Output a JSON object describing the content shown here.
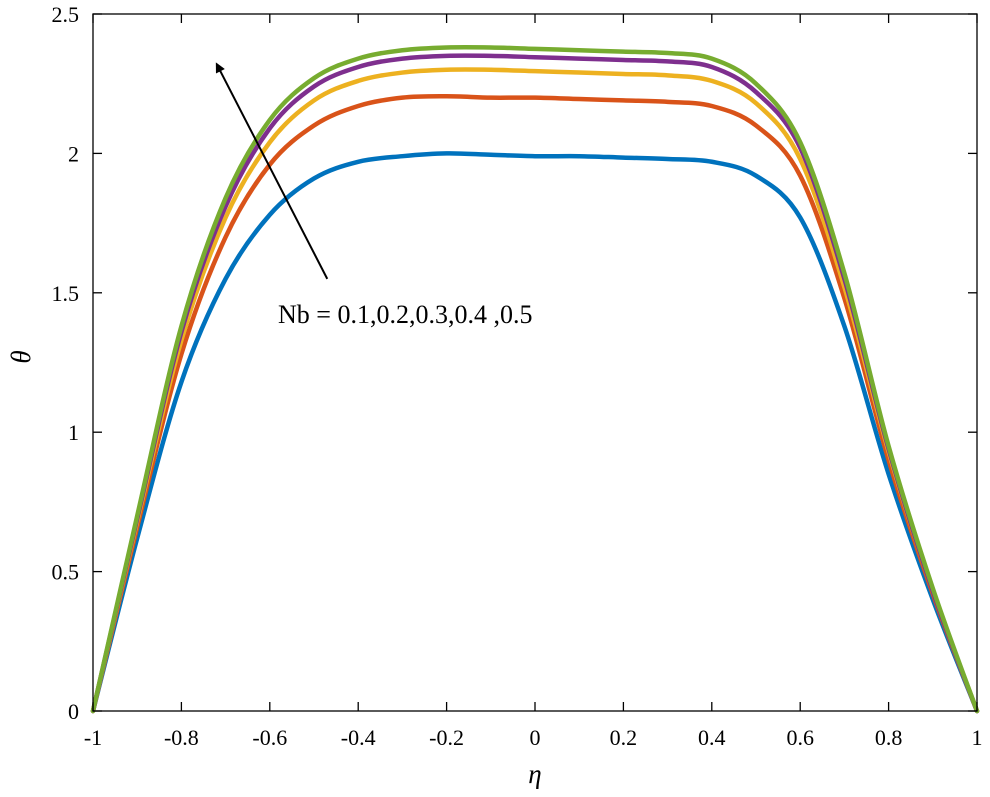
{
  "chart_data": {
    "type": "line",
    "title": "",
    "xlabel": "η",
    "ylabel": "θ",
    "xlim": [
      -1,
      1
    ],
    "ylim": [
      0,
      2.5
    ],
    "xticks": [
      -1,
      -0.8,
      -0.6,
      -0.4,
      -0.2,
      0,
      0.2,
      0.4,
      0.6,
      0.8,
      1
    ],
    "xtick_labels": [
      "-1",
      "-0.8",
      "-0.6",
      "-0.4",
      "-0.2",
      "0",
      "0.2",
      "0.4",
      "0.6",
      "0.8",
      "1"
    ],
    "yticks": [
      0,
      0.5,
      1,
      1.5,
      2,
      2.5
    ],
    "ytick_labels": [
      "0",
      "0.5",
      "1",
      "1.5",
      "2",
      "2.5"
    ],
    "grid": false,
    "annotation": {
      "text": "Nb = 0.1,0.2,0.3,0.4 ,0.5",
      "arrow_from": [
        -0.47,
        1.55
      ],
      "arrow_to": [
        -0.72,
        2.32
      ]
    },
    "x": [
      -1,
      -0.9,
      -0.8,
      -0.7,
      -0.6,
      -0.5,
      -0.4,
      -0.3,
      -0.2,
      -0.1,
      0,
      0.1,
      0.2,
      0.3,
      0.4,
      0.5,
      0.6,
      0.7,
      0.8,
      0.9,
      1
    ],
    "series": [
      {
        "name": "Nb = 0.1",
        "color": "#0072BD",
        "values": [
          0,
          0.62,
          1.18,
          1.55,
          1.78,
          1.91,
          1.97,
          1.99,
          2.0,
          1.995,
          1.99,
          1.99,
          1.985,
          1.98,
          1.97,
          1.92,
          1.77,
          1.38,
          0.85,
          0.4,
          0
        ]
      },
      {
        "name": "Nb = 0.2",
        "color": "#D95319",
        "values": [
          0,
          0.66,
          1.28,
          1.7,
          1.96,
          2.1,
          2.17,
          2.2,
          2.205,
          2.2,
          2.2,
          2.195,
          2.19,
          2.185,
          2.17,
          2.1,
          1.92,
          1.48,
          0.9,
          0.42,
          0
        ]
      },
      {
        "name": "Nb = 0.3",
        "color": "#EDB120",
        "values": [
          0,
          0.68,
          1.33,
          1.77,
          2.04,
          2.19,
          2.26,
          2.29,
          2.3,
          2.3,
          2.295,
          2.29,
          2.285,
          2.28,
          2.26,
          2.18,
          1.98,
          1.52,
          0.93,
          0.43,
          0
        ]
      },
      {
        "name": "Nb = 0.4",
        "color": "#7E2F8E",
        "values": [
          0,
          0.69,
          1.36,
          1.81,
          2.09,
          2.24,
          2.31,
          2.34,
          2.35,
          2.35,
          2.345,
          2.34,
          2.335,
          2.33,
          2.31,
          2.22,
          2.02,
          1.55,
          0.94,
          0.43,
          0
        ]
      },
      {
        "name": "Nb = 0.5",
        "color": "#77AC30",
        "values": [
          0,
          0.7,
          1.38,
          1.84,
          2.12,
          2.27,
          2.34,
          2.37,
          2.38,
          2.38,
          2.375,
          2.37,
          2.365,
          2.36,
          2.34,
          2.25,
          2.04,
          1.57,
          0.95,
          0.44,
          0
        ]
      }
    ]
  }
}
